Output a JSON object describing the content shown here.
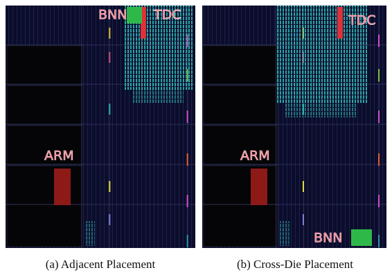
{
  "panels": [
    {
      "labels": {
        "bnn": "BNN",
        "tdc": "TDC",
        "arm": "ARM"
      },
      "caption": "(a) Adjacent Placement"
    },
    {
      "labels": {
        "bnn": "BNN",
        "tdc": "TDC",
        "arm": "ARM"
      },
      "caption": "(b) Cross-Die Placement"
    }
  ]
}
